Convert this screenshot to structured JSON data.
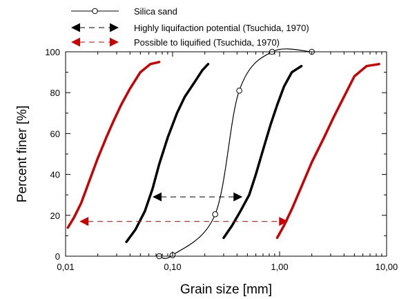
{
  "chart_data": {
    "type": "line",
    "xscale": "log",
    "xlim": [
      0.01,
      10
    ],
    "ylim": [
      0,
      100
    ],
    "xlabel": "Grain size [mm]",
    "ylabel": "Percent finer [%]",
    "x_ticks": [
      "0,01",
      "0,10",
      "1,00",
      "10,00"
    ],
    "y_ticks": [
      "0",
      "20",
      "40",
      "60",
      "80",
      "100"
    ],
    "legend": [
      {
        "label": "Silica sand",
        "style": "line-open-circle",
        "color": "#000000"
      },
      {
        "label": "Highly liquifaction potential (Tsuchida, 1970)",
        "style": "dashed-double-arrow",
        "color": "#000000"
      },
      {
        "label": "Possible to liquified (Tsuchida, 1970)",
        "style": "dashed-double-arrow",
        "color": "#cc0000"
      }
    ],
    "series": [
      {
        "name": "Silica sand",
        "color": "#000000",
        "marker": "open-circle",
        "x": [
          0.075,
          0.1,
          0.25,
          0.42,
          0.85,
          2.0
        ],
        "y": [
          0,
          0.5,
          20.5,
          81,
          100,
          100
        ]
      }
    ],
    "boundaries": [
      {
        "group": "Highly liquifaction potential (Tsuchida, 1970)",
        "color": "#000000",
        "curves": [
          {
            "x": [
              0.037,
              0.045,
              0.055,
              0.065,
              0.075,
              0.09,
              0.11,
              0.13,
              0.16,
              0.19,
              0.215
            ],
            "y": [
              7,
              13,
              22,
              33,
              45,
              58,
              70,
              78,
              85,
              91,
              94
            ]
          },
          {
            "x": [
              0.3,
              0.36,
              0.43,
              0.52,
              0.6,
              0.7,
              0.82,
              0.95,
              1.1,
              1.3,
              1.6
            ],
            "y": [
              9,
              15,
              22,
              30,
              40,
              52,
              64,
              74,
              83,
              90,
              93
            ]
          }
        ]
      },
      {
        "group": "Possible to liquified (Tsuchida, 1970)",
        "color": "#cc0000",
        "curves": [
          {
            "x": [
              0.0105,
              0.012,
              0.014,
              0.017,
              0.02,
              0.024,
              0.028,
              0.033,
              0.04,
              0.05,
              0.062,
              0.075
            ],
            "y": [
              14,
              19,
              26,
              38,
              48,
              58,
              66,
              74,
              82,
              90,
              94,
              95
            ]
          },
          {
            "x": [
              0.95,
              1.1,
              1.3,
              1.6,
              2.0,
              2.6,
              3.2,
              4.0,
              5.0,
              6.5,
              8.5
            ],
            "y": [
              9,
              15,
              23,
              34,
              46,
              58,
              68,
              78,
              88,
              93,
              94
            ]
          }
        ]
      }
    ],
    "ranges": [
      {
        "group": "Highly liquifaction potential (Tsuchida, 1970)",
        "color": "#000000",
        "x": [
          0.065,
          0.45
        ],
        "y": 29
      },
      {
        "group": "Possible to liquified (Tsuchida, 1970)",
        "color": "#cc0000",
        "x": [
          0.0135,
          1.2
        ],
        "y": 17
      }
    ]
  }
}
